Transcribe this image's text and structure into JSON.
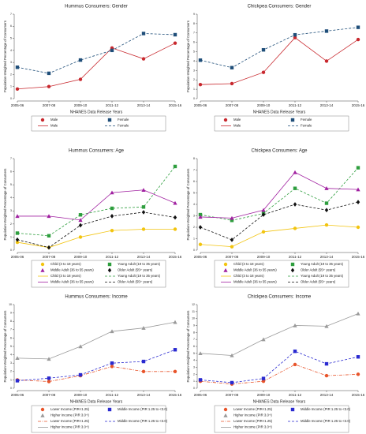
{
  "chart_data": [
    {
      "type": "line",
      "title": "Hummus Consumers: Gender",
      "xlabel": "NHANES Data Release Years",
      "ylabel": "Population-Weighted Percentage of Consumers",
      "categories": [
        "2005-06",
        "2007-08",
        "2009-10",
        "2011-12",
        "2013-14",
        "2015-16"
      ],
      "ylim": [
        0,
        7
      ],
      "yticks": [
        0,
        1,
        2,
        3,
        4,
        5,
        6,
        7
      ],
      "series": [
        {
          "name": "Male",
          "color": "#c8282e",
          "marker": "circle",
          "line_style": "solid",
          "values": [
            0.8,
            1.0,
            1.6,
            4.2,
            3.3,
            4.6
          ]
        },
        {
          "name": "Female",
          "color": "#1f4e79",
          "marker": "square",
          "line_style": "dashed",
          "values": [
            2.6,
            2.1,
            3.2,
            4.0,
            5.4,
            5.3
          ]
        }
      ]
    },
    {
      "type": "line",
      "title": "Chickpea Consumers: Gender",
      "xlabel": "NHANES Data Release Years",
      "ylabel": "Population-Weighted Percentage of Consumers",
      "categories": [
        "2005-06",
        "2007-08",
        "2009-10",
        "2011-12",
        "2013-14",
        "2015-16"
      ],
      "ylim": [
        0,
        9
      ],
      "yticks": [
        0,
        1,
        2,
        3,
        4,
        5,
        6,
        7,
        8,
        9
      ],
      "series": [
        {
          "name": "Male",
          "color": "#c8282e",
          "marker": "circle",
          "line_style": "solid",
          "values": [
            1.5,
            1.6,
            2.8,
            6.5,
            4.0,
            6.3
          ]
        },
        {
          "name": "Female",
          "color": "#1f4e79",
          "marker": "square",
          "line_style": "dashed",
          "values": [
            4.1,
            3.3,
            5.2,
            6.8,
            7.2,
            7.6
          ]
        }
      ]
    },
    {
      "type": "line",
      "title": "Hummus Consumers: Age",
      "ylabel": "Population-Weighted Percentage of Consumers",
      "categories": [
        "2005-06",
        "2007-08",
        "2009-10",
        "2011-12",
        "2013-14",
        "2015-16"
      ],
      "ylim": [
        0,
        7
      ],
      "yticks": [
        0,
        1,
        2,
        3,
        4,
        5,
        6,
        7
      ],
      "series": [
        {
          "name": "Child (3 to 18 years)",
          "color": "#f2c40f",
          "marker": "circle",
          "line_style": "solid",
          "values": [
            0.6,
            0.2,
            1.0,
            1.5,
            1.6,
            1.6
          ]
        },
        {
          "name": "Young Adult (19 to 35 years)",
          "color": "#2e9e3e",
          "marker": "square",
          "line_style": "dashed",
          "values": [
            1.3,
            1.1,
            2.7,
            3.2,
            3.3,
            6.4
          ]
        },
        {
          "name": "Middle Adult (36 to 55 years)",
          "color": "#a020a0",
          "marker": "triangle",
          "line_style": "solid",
          "values": [
            2.6,
            2.6,
            2.3,
            4.4,
            4.6,
            3.6
          ]
        },
        {
          "name": "Older Adult (55+ years)",
          "color": "#111111",
          "marker": "diamond",
          "line_style": "dashed",
          "values": [
            0.8,
            0.2,
            1.9,
            2.6,
            2.9,
            2.5
          ]
        }
      ]
    },
    {
      "type": "line",
      "title": "Chickpea Consumers: Age",
      "ylabel": "Population-Weighted Percentage of Consumers",
      "categories": [
        "2005-06",
        "2007-08",
        "2009-10",
        "2011-12",
        "2013-14",
        "2015-16"
      ],
      "ylim": [
        0,
        8
      ],
      "yticks": [
        0,
        1,
        2,
        3,
        4,
        5,
        6,
        7,
        8
      ],
      "series": [
        {
          "name": "Child (3 to 18 years)",
          "color": "#f2c40f",
          "marker": "circle",
          "line_style": "solid",
          "values": [
            0.5,
            0.3,
            1.6,
            1.9,
            2.2,
            2.0
          ]
        },
        {
          "name": "Young Adult (19 to 35 years)",
          "color": "#2e9e3e",
          "marker": "square",
          "line_style": "dashed",
          "values": [
            3.1,
            2.6,
            3.2,
            5.4,
            4.1,
            7.2
          ]
        },
        {
          "name": "Middle Adult (36 to 55 years)",
          "color": "#a020a0",
          "marker": "triangle",
          "line_style": "solid",
          "values": [
            2.9,
            2.8,
            3.5,
            6.8,
            5.4,
            5.3
          ]
        },
        {
          "name": "Older Adult (55+ years)",
          "color": "#111111",
          "marker": "diamond",
          "line_style": "dashed",
          "values": [
            2.0,
            0.9,
            3.1,
            4.0,
            3.5,
            4.2
          ]
        }
      ]
    },
    {
      "type": "line",
      "title": "Hummus Consumers: Income",
      "xlabel": "NHANES Data Release Years",
      "ylabel": "Population-Weighted Percentage of Consumers",
      "categories": [
        "2005-06",
        "2007-08",
        "2009-10",
        "2011-12",
        "2013-14",
        "2015-16"
      ],
      "ylim": [
        0,
        10
      ],
      "yticks": [
        0,
        1,
        2,
        3,
        4,
        5,
        6,
        7,
        8,
        9,
        10
      ],
      "series": [
        {
          "name": "Lower Income (PIR<1.25)",
          "color": "#e8542a",
          "marker": "circle",
          "line_style": "dashdot",
          "values": [
            1.0,
            0.8,
            1.5,
            2.6,
            2.0,
            2.0
          ]
        },
        {
          "name": "Middle Income (PIR 1.25 to <3.0)",
          "color": "#2a2ad0",
          "marker": "square",
          "line_style": "dashed",
          "values": [
            0.9,
            1.2,
            1.6,
            3.0,
            3.2,
            4.6
          ]
        },
        {
          "name": "Higher Income (PIR 3.0+)",
          "color": "#9a9a9a",
          "marker": "triangle",
          "line_style": "solid",
          "values": [
            3.6,
            3.5,
            5.0,
            6.8,
            7.2,
            7.9
          ]
        }
      ]
    },
    {
      "type": "line",
      "title": "Chickpea Consumers: Income",
      "xlabel": "NHANES Data Release Years",
      "ylabel": "Population-Weighted Percentage of Consumers",
      "categories": [
        "2005-06",
        "2007-08",
        "2009-10",
        "2011-12",
        "2013-14",
        "2015-16"
      ],
      "ylim": [
        0,
        12
      ],
      "yticks": [
        0,
        1,
        2,
        3,
        4,
        5,
        6,
        7,
        8,
        9,
        10,
        11,
        12
      ],
      "series": [
        {
          "name": "Lower Income (PIR<1.25)",
          "color": "#e8542a",
          "marker": "circle",
          "line_style": "dashdot",
          "values": [
            1.0,
            0.6,
            1.0,
            3.4,
            1.8,
            2.0
          ]
        },
        {
          "name": "Middle Income (PIR 1.25 to <3.0)",
          "color": "#2a2ad0",
          "marker": "square",
          "line_style": "dashed",
          "values": [
            1.2,
            0.8,
            1.4,
            5.3,
            3.5,
            4.5
          ]
        },
        {
          "name": "Higher Income (PIR 3.0+)",
          "color": "#9a9a9a",
          "marker": "triangle",
          "line_style": "solid",
          "values": [
            5.0,
            4.7,
            7.0,
            9.0,
            8.9,
            10.7
          ]
        }
      ]
    }
  ]
}
